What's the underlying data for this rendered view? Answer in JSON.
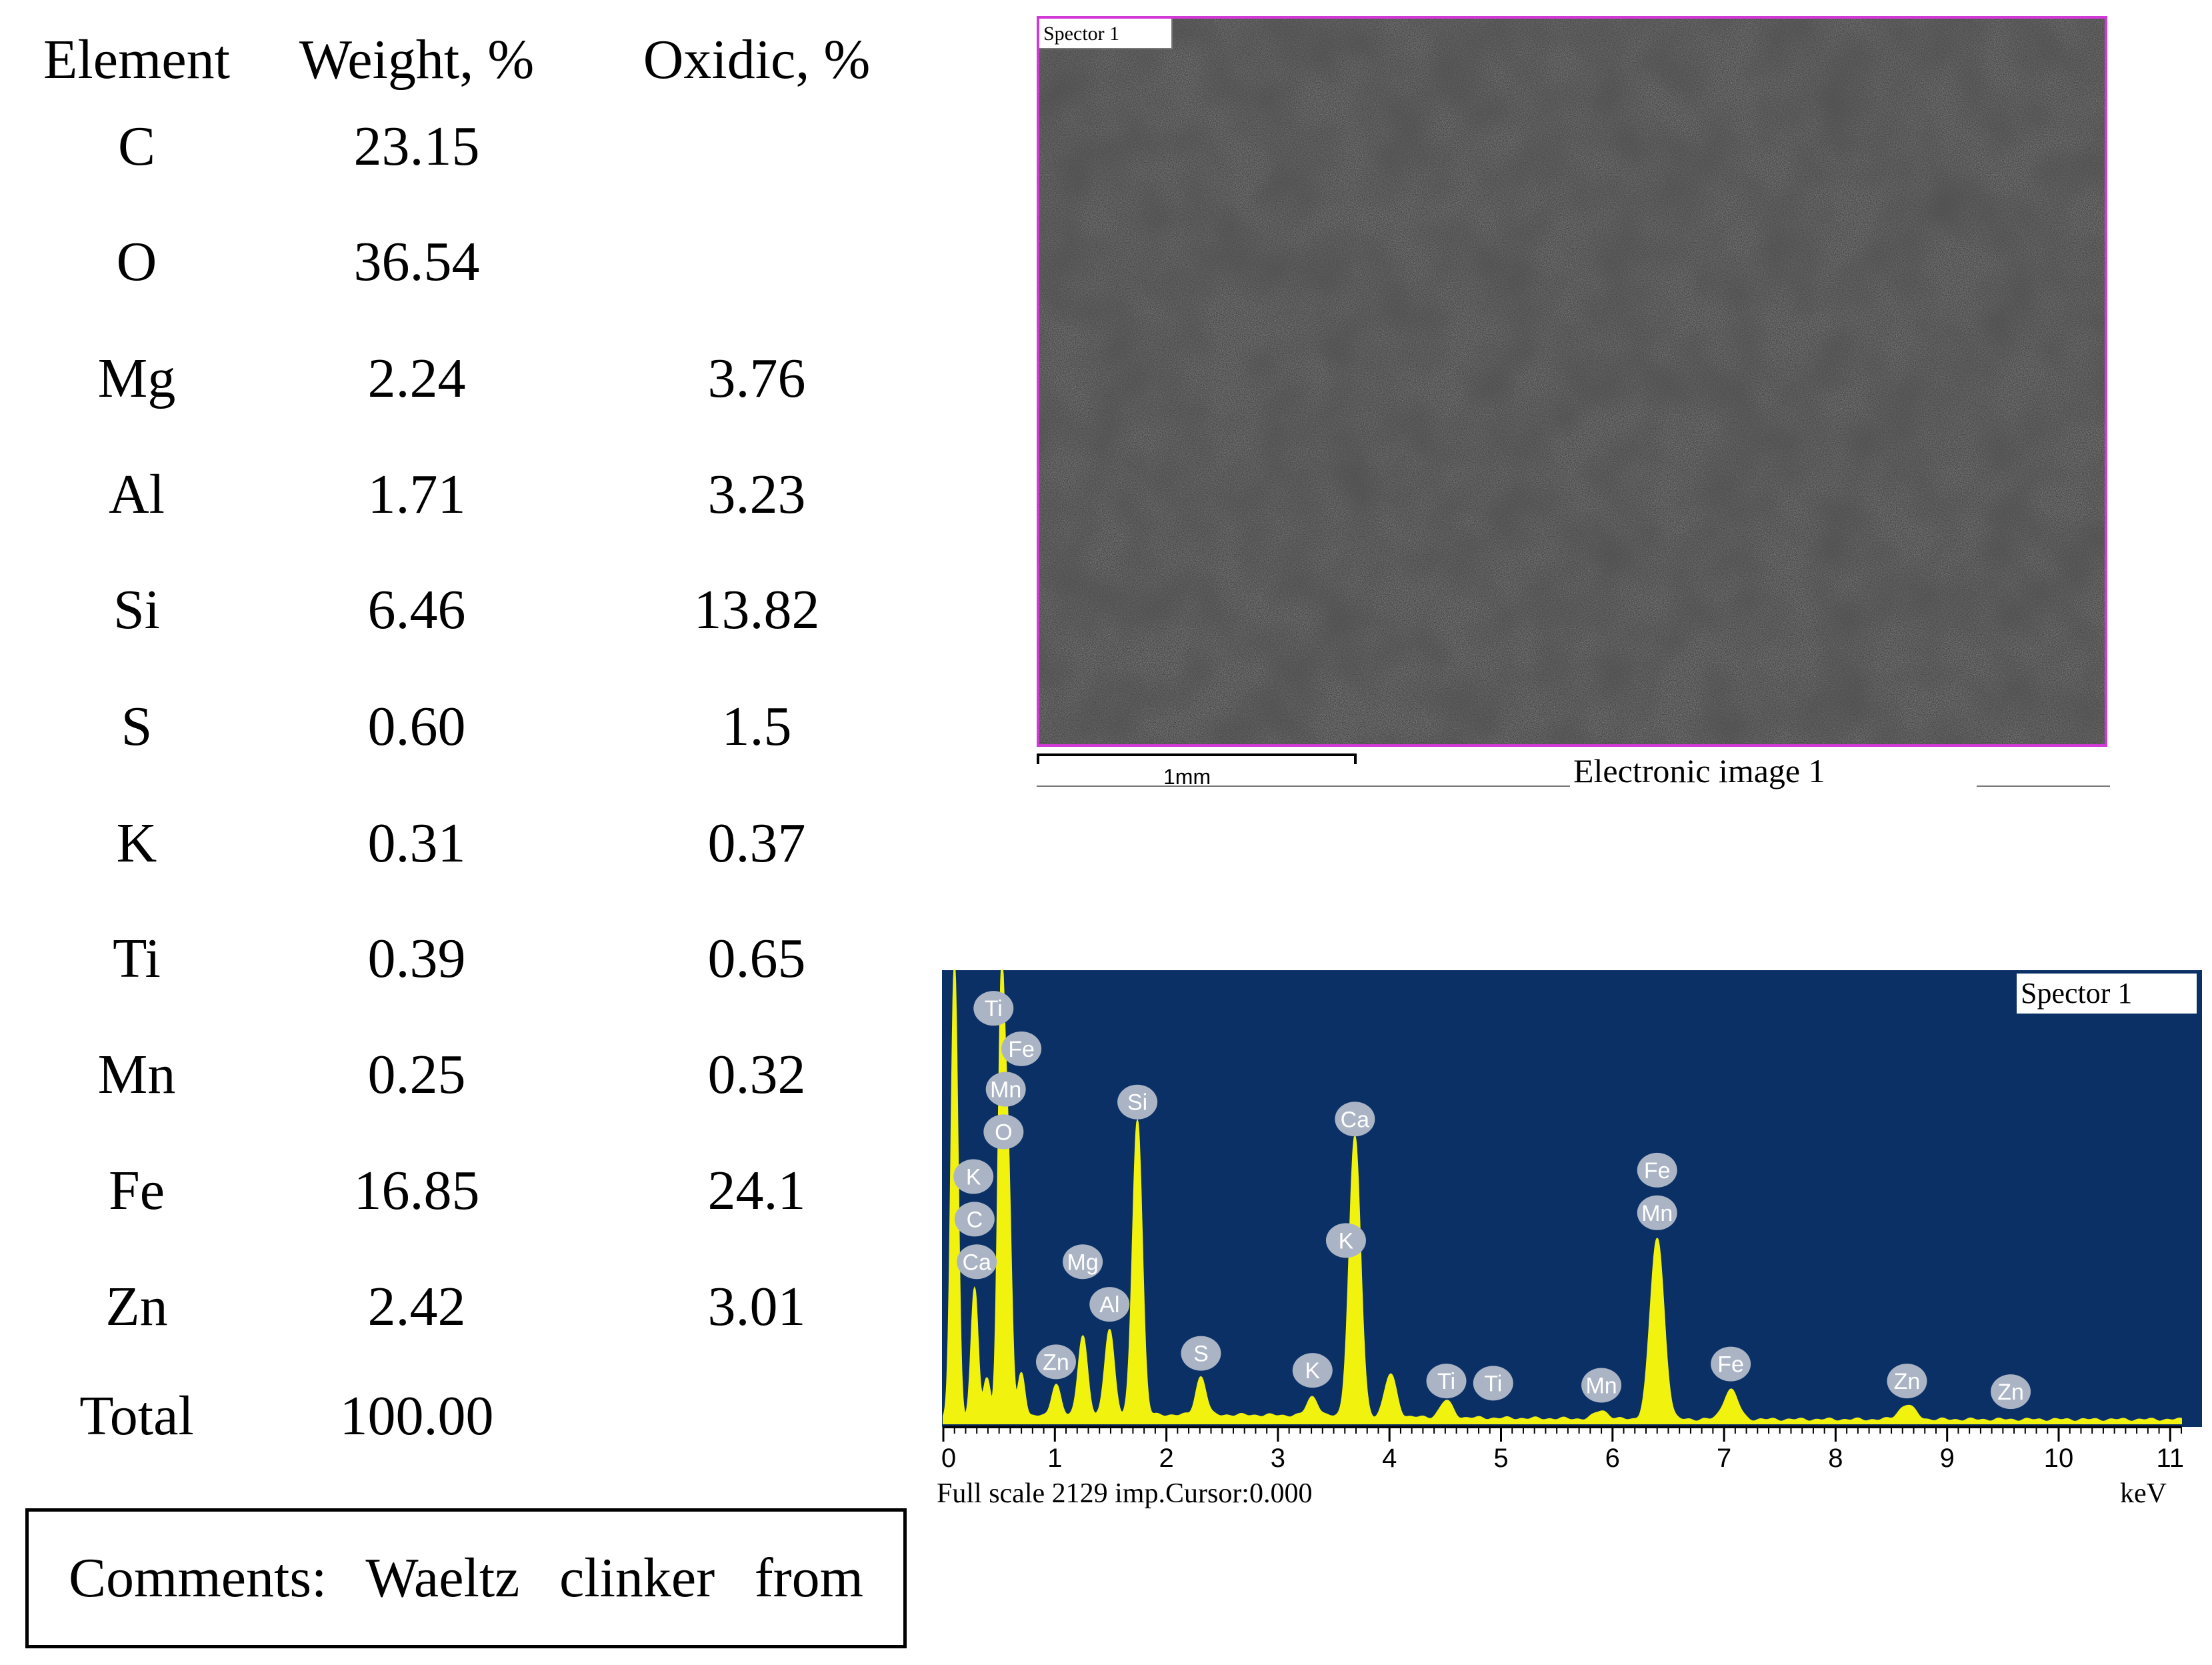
{
  "table": {
    "headers": {
      "element": "Element",
      "weight": "Weight, %",
      "oxidic": "Oxidic, %"
    },
    "rows": [
      {
        "element": "C",
        "weight": "23.15",
        "oxidic": ""
      },
      {
        "element": "O",
        "weight": "36.54",
        "oxidic": ""
      },
      {
        "element": "Mg",
        "weight": "2.24",
        "oxidic": "3.76"
      },
      {
        "element": "Al",
        "weight": "1.71",
        "oxidic": "3.23"
      },
      {
        "element": "Si",
        "weight": "6.46",
        "oxidic": "13.82"
      },
      {
        "element": "S",
        "weight": "0.60",
        "oxidic": "1.5"
      },
      {
        "element": "K",
        "weight": "0.31",
        "oxidic": "0.37"
      },
      {
        "element": "Ti",
        "weight": "0.39",
        "oxidic": "0.65"
      },
      {
        "element": "Mn",
        "weight": "0.25",
        "oxidic": "0.32"
      },
      {
        "element": "Fe",
        "weight": "16.85",
        "oxidic": "24.1"
      },
      {
        "element": "Zn",
        "weight": "2.42",
        "oxidic": "3.01"
      },
      {
        "element": "Total",
        "weight": "100.00",
        "oxidic": ""
      }
    ],
    "comments": "Comments:  Waeltz  clinker  from"
  },
  "sem_image": {
    "title": "Spector 1",
    "scale_label": "1mm",
    "caption": "Electronic image 1",
    "frame_color": "#d13ad6"
  },
  "chart_data": {
    "type": "line",
    "title": "Spector 1",
    "xlabel": "keV",
    "xlim": [
      0,
      11.1
    ],
    "ylim": [
      0,
      2129
    ],
    "x_ticks": [
      0,
      1,
      2,
      3,
      4,
      5,
      6,
      7,
      8,
      9,
      10,
      11
    ],
    "footer": "Full scale 2129 imp.Cursor:0.000",
    "background_color": "#0b3066",
    "fill_color": "#f2f20f",
    "series": [
      {
        "peaks": [
          {
            "x": 0.1,
            "y": 2129
          },
          {
            "x": 0.28,
            "y": 600
          },
          {
            "x": 0.39,
            "y": 180
          },
          {
            "x": 0.52,
            "y": 1950
          },
          {
            "x": 0.58,
            "y": 1100
          },
          {
            "x": 0.7,
            "y": 210
          },
          {
            "x": 1.01,
            "y": 150
          },
          {
            "x": 1.25,
            "y": 380
          },
          {
            "x": 1.49,
            "y": 410
          },
          {
            "x": 1.74,
            "y": 1390
          },
          {
            "x": 2.31,
            "y": 180
          },
          {
            "x": 3.31,
            "y": 90
          },
          {
            "x": 3.69,
            "y": 1310
          },
          {
            "x": 4.01,
            "y": 200
          },
          {
            "x": 4.51,
            "y": 80
          },
          {
            "x": 5.9,
            "y": 40
          },
          {
            "x": 6.4,
            "y": 850
          },
          {
            "x": 7.06,
            "y": 140
          },
          {
            "x": 8.64,
            "y": 70
          }
        ]
      }
    ],
    "peak_labels": [
      {
        "text": "Ti",
        "x": 0.45,
        "y": 1950
      },
      {
        "text": "Fe",
        "x": 0.7,
        "y": 1760
      },
      {
        "text": "Mn",
        "x": 0.56,
        "y": 1570
      },
      {
        "text": "O",
        "x": 0.54,
        "y": 1370
      },
      {
        "text": "K",
        "x": 0.27,
        "y": 1160
      },
      {
        "text": "C",
        "x": 0.28,
        "y": 960
      },
      {
        "text": "Ca",
        "x": 0.3,
        "y": 760
      },
      {
        "text": "Mg",
        "x": 1.25,
        "y": 760
      },
      {
        "text": "Al",
        "x": 1.49,
        "y": 560
      },
      {
        "text": "Zn",
        "x": 1.01,
        "y": 290
      },
      {
        "text": "Si",
        "x": 1.74,
        "y": 1510
      },
      {
        "text": "S",
        "x": 2.31,
        "y": 330
      },
      {
        "text": "K",
        "x": 3.31,
        "y": 250
      },
      {
        "text": "Ca",
        "x": 3.69,
        "y": 1430
      },
      {
        "text": "K",
        "x": 3.61,
        "y": 860
      },
      {
        "text": "Ti",
        "x": 4.51,
        "y": 200
      },
      {
        "text": "Ti",
        "x": 4.93,
        "y": 190
      },
      {
        "text": "Mn",
        "x": 5.9,
        "y": 180
      },
      {
        "text": "Fe",
        "x": 6.4,
        "y": 1190
      },
      {
        "text": "Mn",
        "x": 6.4,
        "y": 990
      },
      {
        "text": "Fe",
        "x": 7.06,
        "y": 280
      },
      {
        "text": "Zn",
        "x": 8.64,
        "y": 200
      },
      {
        "text": "Zn",
        "x": 9.57,
        "y": 150
      }
    ]
  }
}
